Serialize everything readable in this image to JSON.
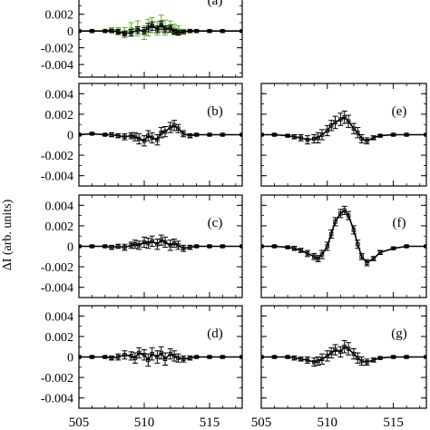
{
  "ylabel": "ΔI (arb. units)",
  "colors": {
    "axis": "#000000",
    "data": "#000000",
    "overlay": "#5ab02a"
  },
  "chart_data": [
    {
      "panel": "a",
      "label": "(a)",
      "type": "line",
      "ylim": [
        -0.0055,
        0.005
      ],
      "xlim": [
        505,
        517.5
      ],
      "yticks": [
        "0.002",
        "0",
        "-0.002",
        "-0.004"
      ],
      "ytick_values": [
        0.002,
        0,
        -0.002,
        -0.004
      ],
      "xticks": [],
      "series": [
        {
          "x": [
            505,
            506,
            507,
            507.5,
            508,
            508.5,
            509,
            509.5,
            510,
            510.3,
            510.6,
            511,
            511.3,
            511.6,
            512,
            512.3,
            512.6,
            513,
            513.5,
            514,
            515,
            516,
            517.5
          ],
          "y": [
            0,
            0,
            0,
            0.0001,
            0,
            -0.0002,
            0.0002,
            0.0003,
            -0.0002,
            0.0004,
            0.0007,
            0.0003,
            0.0009,
            0.0004,
            0.0005,
            0.0002,
            0.0001,
            -0.0001,
            0,
            0,
            0,
            0,
            0
          ],
          "err": [
            0.0001,
            0.0001,
            0.0001,
            0.0003,
            0.0004,
            0.0006,
            0.0008,
            0.0009,
            0.0008,
            0.001,
            0.0009,
            0.0008,
            0.001,
            0.0009,
            0.0007,
            0.0006,
            0.0005,
            0.0003,
            0.0002,
            0.0001,
            0.0001,
            0.0001,
            0.0001
          ],
          "style": "overlay"
        },
        {
          "x": [
            505,
            506,
            507,
            507.5,
            508,
            508.5,
            509,
            509.5,
            510,
            510.3,
            510.6,
            511,
            511.3,
            511.6,
            512,
            512.3,
            512.6,
            513,
            513.5,
            514,
            515,
            516,
            517.5
          ],
          "y": [
            0,
            0,
            0,
            0,
            -0.0001,
            -0.0003,
            -0.0002,
            0.0001,
            0,
            0.0004,
            0.0006,
            0.0002,
            0.0007,
            0.0002,
            0.0003,
            -0.0001,
            -0.0002,
            -0.0001,
            0,
            0,
            0,
            0,
            0
          ],
          "err": [
            0.0001,
            0.0001,
            0.0001,
            0.0002,
            0.0003,
            0.0003,
            0.0004,
            0.0004,
            0.0004,
            0.0005,
            0.0005,
            0.0004,
            0.0005,
            0.0004,
            0.0004,
            0.0003,
            0.0003,
            0.0002,
            0.0001,
            0.0001,
            0.0001,
            0.0001,
            0.0001
          ],
          "style": "data"
        }
      ]
    },
    {
      "panel": "b",
      "label": "(b)",
      "type": "line",
      "ylim": [
        -0.005,
        0.005
      ],
      "xlim": [
        505,
        517.5
      ],
      "yticks": [
        "0.004",
        "0.002",
        "0",
        "-0.002",
        "-0.004"
      ],
      "ytick_values": [
        0.004,
        0.002,
        0,
        -0.002,
        -0.004
      ],
      "xticks": [],
      "series": [
        {
          "x": [
            505,
            506,
            507,
            507.5,
            508,
            508.5,
            509,
            509.3,
            509.6,
            510,
            510.3,
            510.6,
            511,
            511.3,
            511.6,
            512,
            512.3,
            512.6,
            513,
            513.5,
            514,
            515,
            516,
            517.5
          ],
          "y": [
            0,
            0.0001,
            0,
            0,
            -0.0001,
            -0.0002,
            -0.0001,
            -0.0002,
            -0.0004,
            -0.0006,
            -0.0001,
            -0.0003,
            -0.0005,
            0.0002,
            0.0003,
            0.0007,
            0.0009,
            0.0006,
            0.0001,
            -0.0001,
            0,
            0,
            0,
            0
          ],
          "err": [
            0.0001,
            0.0001,
            0.0001,
            0.0002,
            0.0002,
            0.0003,
            0.0003,
            0.0004,
            0.0005,
            0.0005,
            0.0005,
            0.0005,
            0.0005,
            0.0005,
            0.0005,
            0.0005,
            0.0005,
            0.0004,
            0.0003,
            0.0002,
            0.0001,
            0.0001,
            0.0001,
            0.0001
          ],
          "style": "data"
        }
      ]
    },
    {
      "panel": "e",
      "label": "(e)",
      "type": "line",
      "ylim": [
        -0.005,
        0.005
      ],
      "xlim": [
        505,
        517.5
      ],
      "yticks": [],
      "ytick_values": [
        0.004,
        0.002,
        0,
        -0.002,
        -0.004
      ],
      "xticks": [],
      "series": [
        {
          "x": [
            505,
            506,
            507,
            507.5,
            508,
            508.5,
            509,
            509.3,
            509.6,
            510,
            510.3,
            510.6,
            511,
            511.3,
            511.6,
            512,
            512.3,
            512.6,
            513,
            513.5,
            514,
            515,
            516,
            517.5
          ],
          "y": [
            0,
            0,
            -0.0001,
            -0.0002,
            -0.0003,
            -0.0005,
            -0.0004,
            -0.0003,
            0,
            0.0004,
            0.0009,
            0.0012,
            0.0015,
            0.0017,
            0.0013,
            0.0006,
            0.0002,
            -0.0004,
            -0.0006,
            -0.0003,
            -0.0001,
            0,
            0,
            0
          ],
          "err": [
            0.0001,
            0.0001,
            0.0001,
            0.0002,
            0.0003,
            0.0004,
            0.0004,
            0.0005,
            0.0005,
            0.0005,
            0.0005,
            0.0006,
            0.0006,
            0.0006,
            0.0006,
            0.0005,
            0.0005,
            0.0004,
            0.0003,
            0.0002,
            0.0001,
            0.0001,
            0.0001,
            0.0001
          ],
          "style": "data"
        }
      ]
    },
    {
      "panel": "c",
      "label": "(c)",
      "type": "line",
      "ylim": [
        -0.005,
        0.005
      ],
      "xlim": [
        505,
        517.5
      ],
      "yticks": [
        "0.004",
        "0.002",
        "0",
        "-0.002",
        "-0.004"
      ],
      "ytick_values": [
        0.004,
        0.002,
        0,
        -0.002,
        -0.004
      ],
      "xticks": [],
      "series": [
        {
          "x": [
            505,
            506,
            507,
            507.5,
            508,
            508.5,
            509,
            509.3,
            509.6,
            510,
            510.3,
            510.6,
            511,
            511.3,
            511.6,
            512,
            512.3,
            512.6,
            513,
            513.5,
            514,
            515,
            516,
            517.5
          ],
          "y": [
            0,
            0,
            0,
            -0.0001,
            0,
            -0.0001,
            0.0001,
            0.0002,
            0.0001,
            0.0004,
            0.0003,
            0.0005,
            0.0002,
            0.0006,
            0.0004,
            0.0001,
            0.0003,
            0.0001,
            -0.0002,
            -0.0001,
            0,
            0,
            0,
            0
          ],
          "err": [
            0.0001,
            0.0001,
            0.0001,
            0.0002,
            0.0002,
            0.0003,
            0.0003,
            0.0004,
            0.0004,
            0.0005,
            0.0005,
            0.0005,
            0.0005,
            0.0005,
            0.0005,
            0.0005,
            0.0004,
            0.0004,
            0.0003,
            0.0002,
            0.0001,
            0.0001,
            0.0001,
            0.0001
          ],
          "style": "data"
        }
      ]
    },
    {
      "panel": "f",
      "label": "(f)",
      "type": "line",
      "ylim": [
        -0.005,
        0.005
      ],
      "xlim": [
        505,
        517.5
      ],
      "yticks": [],
      "ytick_values": [
        0.004,
        0.002,
        0,
        -0.002,
        -0.004
      ],
      "xticks": [],
      "series": [
        {
          "x": [
            505,
            506,
            507,
            507.5,
            508,
            508.5,
            509,
            509.3,
            509.6,
            510,
            510.3,
            510.6,
            511,
            511.3,
            511.6,
            512,
            512.3,
            512.6,
            513,
            513.5,
            514,
            515,
            516,
            517.5
          ],
          "y": [
            0,
            0,
            -0.0001,
            -0.0002,
            -0.0004,
            -0.0007,
            -0.001,
            -0.0012,
            -0.0008,
            0,
            0.0012,
            0.0024,
            0.0032,
            0.0035,
            0.003,
            0.0016,
            0.0002,
            -0.001,
            -0.0016,
            -0.0012,
            -0.0006,
            -0.0002,
            0,
            0
          ],
          "err": [
            0.0001,
            0.0001,
            0.0001,
            0.0002,
            0.0002,
            0.0003,
            0.0003,
            0.0003,
            0.0004,
            0.0004,
            0.0004,
            0.0004,
            0.0004,
            0.0004,
            0.0004,
            0.0004,
            0.0004,
            0.0003,
            0.0003,
            0.0002,
            0.0002,
            0.0001,
            0.0001,
            0.0001
          ],
          "style": "data"
        }
      ]
    },
    {
      "panel": "d",
      "label": "(d)",
      "type": "line",
      "ylim": [
        -0.005,
        0.005
      ],
      "xlim": [
        505,
        517.5
      ],
      "yticks": [
        "0.004",
        "0.002",
        "0",
        "-0.002",
        "-0.004"
      ],
      "ytick_values": [
        0.004,
        0.002,
        0,
        -0.002,
        -0.004
      ],
      "xticks": [
        "505",
        "510",
        "515"
      ],
      "xtick_values": [
        505,
        510,
        515
      ],
      "series": [
        {
          "x": [
            505,
            506,
            507,
            507.5,
            508,
            508.5,
            509,
            509.3,
            509.6,
            510,
            510.3,
            510.6,
            511,
            511.3,
            511.6,
            512,
            512.3,
            512.6,
            513,
            513.5,
            514,
            515,
            516,
            517.5
          ],
          "y": [
            0,
            0,
            0,
            -0.0001,
            0,
            0.0002,
            0.0001,
            -0.0001,
            0.0004,
            0.0002,
            -0.0003,
            0.0003,
            0,
            0.0004,
            -0.0002,
            0.0003,
            0.0001,
            -0.0001,
            -0.0002,
            -0.0001,
            0,
            0,
            0,
            0
          ],
          "err": [
            0.0001,
            0.0001,
            0.0001,
            0.0002,
            0.0003,
            0.0004,
            0.0004,
            0.0005,
            0.0005,
            0.0005,
            0.0006,
            0.0006,
            0.0006,
            0.0006,
            0.0006,
            0.0005,
            0.0005,
            0.0004,
            0.0003,
            0.0002,
            0.0001,
            0.0001,
            0.0001,
            0.0001
          ],
          "style": "data"
        }
      ]
    },
    {
      "panel": "g",
      "label": "(g)",
      "type": "line",
      "ylim": [
        -0.005,
        0.005
      ],
      "xlim": [
        505,
        517.5
      ],
      "yticks": [],
      "ytick_values": [
        0.004,
        0.002,
        0,
        -0.002,
        -0.004
      ],
      "xticks": [
        "505",
        "510",
        "515"
      ],
      "xtick_values": [
        505,
        510,
        515
      ],
      "series": [
        {
          "x": [
            505,
            506,
            507,
            507.5,
            508,
            508.5,
            509,
            509.3,
            509.6,
            510,
            510.3,
            510.6,
            511,
            511.3,
            511.6,
            512,
            512.3,
            512.6,
            513,
            513.5,
            514,
            515,
            516,
            517.5
          ],
          "y": [
            0,
            0,
            0,
            -0.0001,
            -0.0002,
            -0.0003,
            -0.0005,
            -0.0004,
            -0.0002,
            0.0001,
            0.0004,
            0.0007,
            0.0005,
            0.001,
            0.0008,
            0.0003,
            -0.0001,
            -0.0004,
            -0.0005,
            -0.0003,
            -0.0001,
            0,
            0,
            0
          ],
          "err": [
            0.0001,
            0.0001,
            0.0001,
            0.0002,
            0.0002,
            0.0003,
            0.0004,
            0.0004,
            0.0005,
            0.0005,
            0.0005,
            0.0005,
            0.0005,
            0.0006,
            0.0006,
            0.0005,
            0.0005,
            0.0004,
            0.0003,
            0.0002,
            0.0001,
            0.0001,
            0.0001,
            0.0001
          ],
          "style": "data"
        }
      ]
    }
  ]
}
